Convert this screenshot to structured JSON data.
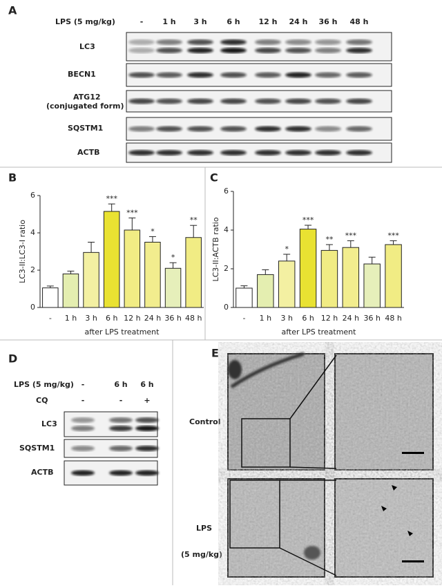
{
  "panel_a": {
    "letter": "A",
    "treatment": "LPS (5 mg/kg)",
    "lanes": [
      "-",
      "1 h",
      "3 h",
      "6 h",
      "12 h",
      "24 h",
      "36 h",
      "48 h"
    ],
    "blots": [
      "LC3",
      "BECN1",
      "ATG12",
      "(conjugated form)",
      "SQSTM1",
      "ACTB"
    ]
  },
  "chart_data": [
    {
      "type": "bar",
      "letter": "B",
      "ylabel": "LC3-II:LC3-I ratio",
      "xlabel": "after LPS treatment",
      "categories": [
        "-",
        "1 h",
        "3 h",
        "6 h",
        "12 h",
        "24 h",
        "36 h",
        "48 h"
      ],
      "values": [
        1.05,
        1.8,
        2.95,
        5.15,
        4.15,
        3.5,
        2.1,
        3.75
      ],
      "errors": [
        0.1,
        0.15,
        0.55,
        0.4,
        0.65,
        0.3,
        0.3,
        0.65
      ],
      "significance": [
        null,
        null,
        null,
        "***",
        "***",
        "*",
        "*",
        "**"
      ],
      "colors": [
        "#ffffff",
        "#e4eeb0",
        "#f3f0a2",
        "#e9e232",
        "#f1ec84",
        "#f2ed8e",
        "#e6efba",
        "#f1ec84"
      ],
      "ylim": [
        0,
        6
      ],
      "yticks": [
        0,
        2,
        4,
        6
      ]
    },
    {
      "type": "bar",
      "letter": "C",
      "ylabel": "LC3-II:ACTB ratio",
      "xlabel": "after LPS treatment",
      "categories": [
        "-",
        "1 h",
        "3 h",
        "6 h",
        "12 h",
        "24 h",
        "36 h",
        "48 h"
      ],
      "values": [
        1.0,
        1.7,
        2.4,
        4.05,
        2.95,
        3.1,
        2.25,
        3.25
      ],
      "errors": [
        0.12,
        0.25,
        0.35,
        0.2,
        0.3,
        0.35,
        0.35,
        0.2
      ],
      "significance": [
        null,
        null,
        "*",
        "***",
        "**",
        "***",
        null,
        "***"
      ],
      "colors": [
        "#ffffff",
        "#e4eeb0",
        "#f3f0a2",
        "#e9e232",
        "#f1ec84",
        "#f2ed8e",
        "#e6efba",
        "#f1ec84"
      ],
      "ylim": [
        0,
        6
      ],
      "yticks": [
        0,
        2,
        4,
        6
      ]
    }
  ],
  "panel_d": {
    "letter": "D",
    "treatment": "LPS (5 mg/kg)",
    "lanes": [
      "-",
      "6 h",
      "6 h"
    ],
    "cq": "CQ",
    "cq_lanes": [
      "-",
      "-",
      "+"
    ],
    "blots": [
      "LC3",
      "SQSTM1",
      "ACTB"
    ]
  },
  "panel_e": {
    "letter": "E",
    "rows": [
      "Control",
      "LPS",
      "(5 mg/kg)"
    ]
  }
}
